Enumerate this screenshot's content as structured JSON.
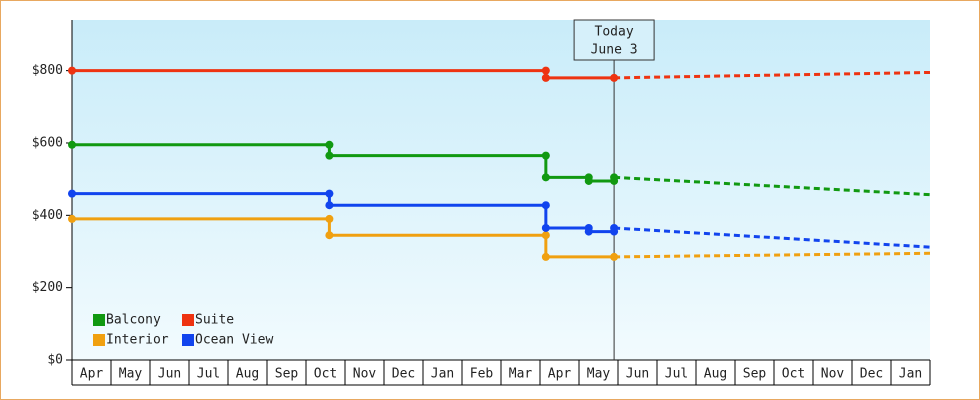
{
  "chart_data": {
    "type": "step-line",
    "categories": [
      "Apr",
      "May",
      "Jun",
      "Jul",
      "Aug",
      "Sep",
      "Oct",
      "Nov",
      "Dec",
      "Jan",
      "Feb",
      "Mar",
      "Apr",
      "May",
      "Jun",
      "Jul",
      "Aug",
      "Sep",
      "Oct",
      "Nov",
      "Dec",
      "Jan"
    ],
    "xlim": [
      0,
      22
    ],
    "ylim": [
      0,
      940
    ],
    "yticks": [
      {
        "value": 0,
        "label": "$0"
      },
      {
        "value": 200,
        "label": "$200"
      },
      {
        "value": 400,
        "label": "$400"
      },
      {
        "value": 600,
        "label": "$600"
      },
      {
        "value": 800,
        "label": "$800"
      }
    ],
    "annotation": {
      "lines": [
        "Today",
        "June 3"
      ],
      "x": 13.9
    },
    "legend": "lower-left",
    "series": [
      {
        "name": "Balcony",
        "color": "#119911",
        "x": [
          0,
          6.6,
          6.6,
          12.15,
          12.15,
          13.25,
          13.25,
          13.9,
          13.9
        ],
        "values": [
          595,
          595,
          565,
          565,
          505,
          505,
          495,
          495,
          505
        ],
        "forecast": {
          "x": [
            13.9,
            22
          ],
          "values": [
            505,
            457
          ]
        }
      },
      {
        "name": "Suite",
        "color": "#ee3311",
        "x": [
          0,
          12.15,
          12.15,
          13.9
        ],
        "values": [
          800,
          800,
          780,
          780
        ],
        "forecast": {
          "x": [
            13.9,
            22
          ],
          "values": [
            780,
            795
          ]
        }
      },
      {
        "name": "Interior",
        "color": "#f0a010",
        "x": [
          0,
          6.6,
          6.6,
          12.15,
          12.15,
          13.9
        ],
        "values": [
          390,
          390,
          345,
          345,
          285,
          285
        ],
        "forecast": {
          "x": [
            13.9,
            22
          ],
          "values": [
            285,
            295
          ]
        }
      },
      {
        "name": "Ocean View",
        "color": "#1144ee",
        "x": [
          0,
          6.6,
          6.6,
          12.15,
          12.15,
          13.25,
          13.25,
          13.9,
          13.9
        ],
        "values": [
          460,
          460,
          428,
          428,
          365,
          365,
          355,
          355,
          365
        ],
        "forecast": {
          "x": [
            13.9,
            22
          ],
          "values": [
            365,
            312
          ]
        }
      }
    ]
  }
}
